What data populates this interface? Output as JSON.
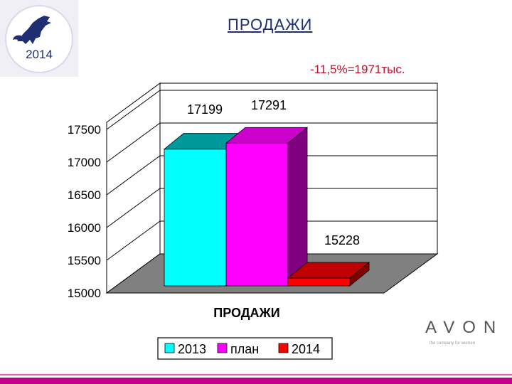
{
  "slide": {
    "title": "ПРОДАЖИ",
    "note": "-11,5%=1971тыс.",
    "logo_year": "2014",
    "brand": "AVON",
    "tagline": "the company for women"
  },
  "colors": {
    "title": "#1f2d73",
    "note": "#c0102a",
    "accent": "#c2008a"
  },
  "chart_data": {
    "type": "bar",
    "style": "3d",
    "categories": [
      "ПРОДАЖИ"
    ],
    "xlabel": "ПРОДАЖИ",
    "ylim": [
      15000,
      17500
    ],
    "yticks": [
      15000,
      15500,
      16000,
      16500,
      17000,
      17500
    ],
    "grid": true,
    "legend_position": "bottom",
    "series": [
      {
        "name": "2013",
        "values": [
          17199
        ],
        "label": "17199",
        "color": "#00ffff",
        "top_color": "#009999",
        "side_color": "#008080"
      },
      {
        "name": "план",
        "values": [
          17291
        ],
        "label": "17291",
        "color": "#ff00ff",
        "top_color": "#cc00cc",
        "side_color": "#800080"
      },
      {
        "name": "2014",
        "values": [
          15228
        ],
        "label": "15228",
        "color": "#ff0000",
        "top_color": "#c00000",
        "side_color": "#800000"
      }
    ]
  }
}
